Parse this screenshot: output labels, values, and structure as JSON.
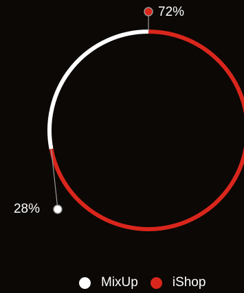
{
  "chart_data": {
    "type": "pie",
    "variant": "ring",
    "series": [
      {
        "name": "MixUp",
        "value": 28,
        "label": "28%",
        "color": "#ffffff"
      },
      {
        "name": "iShop",
        "value": 72,
        "label": "72%",
        "color": "#d9261c"
      }
    ],
    "legend_position": "bottom-right"
  },
  "colors": {
    "background": "#0b0805",
    "leader": "#9a9a9a"
  }
}
